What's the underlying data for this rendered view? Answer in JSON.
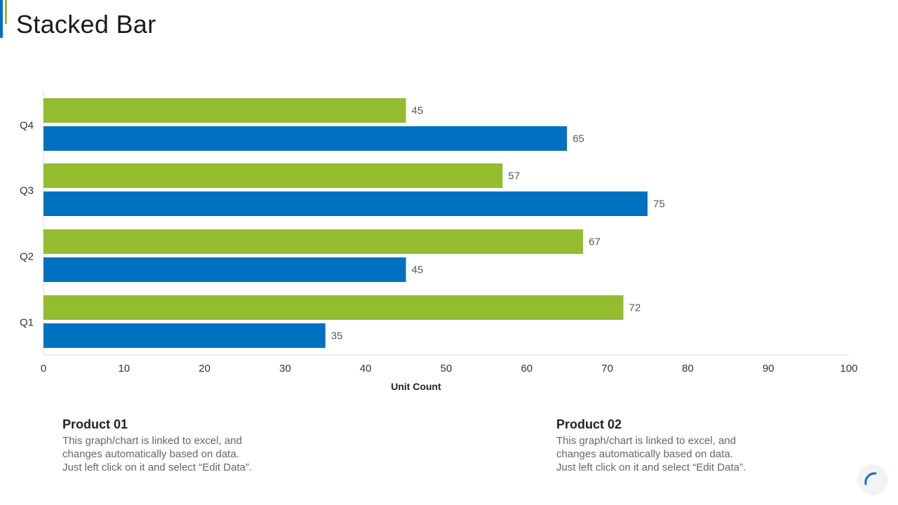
{
  "page": {
    "title": "Stacked Bar"
  },
  "colors": {
    "product01": "#93bc2f",
    "product02": "#0070c0",
    "accent_blue": "#0070c0",
    "accent_green": "#93bc2f"
  },
  "chart_data": {
    "type": "bar",
    "orientation": "horizontal",
    "title": "",
    "categories": [
      "Q1",
      "Q2",
      "Q3",
      "Q4"
    ],
    "series": [
      {
        "name": "Product 01",
        "values": [
          72,
          67,
          57,
          45
        ]
      },
      {
        "name": "Product 02",
        "values": [
          35,
          45,
          75,
          65
        ]
      }
    ],
    "xlabel": "Unit Count",
    "ylabel": "",
    "xlim": [
      0,
      100
    ],
    "xticks": [
      0,
      10,
      20,
      30,
      40,
      50,
      60,
      70,
      80,
      90,
      100
    ],
    "grid": false,
    "data_labels": true
  },
  "legend": [
    {
      "title": "Product 01",
      "lines": [
        "This graph/chart is linked to excel, and",
        "changes automatically based on data.",
        "Just left click on it and select “Edit Data”."
      ]
    },
    {
      "title": "Product 02",
      "lines": [
        "This graph/chart is linked to excel, and",
        "changes automatically based on data.",
        "Just left click on it and select “Edit Data”."
      ]
    }
  ]
}
